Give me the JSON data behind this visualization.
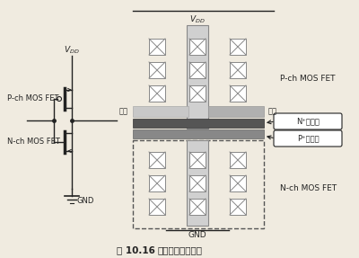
{
  "title_fig": "图 10.16",
  "title_text": "防止闩锁的防护带",
  "bg_color": "#f0ebe0",
  "line_color": "#222222",
  "vdd_label": "$V_{DD}$",
  "gnd_label": "GND",
  "pch_label": "P-ch MOS FET",
  "nch_label": "N-ch MOS FET",
  "input_label": "输入",
  "output_label": "输出",
  "n_guard_label": "N⁺防护带",
  "p_guard_label": "P⁺防护带",
  "grid_color": "#888888",
  "dashed_box_color": "#555555",
  "fig_width": 4.0,
  "fig_height": 2.87
}
